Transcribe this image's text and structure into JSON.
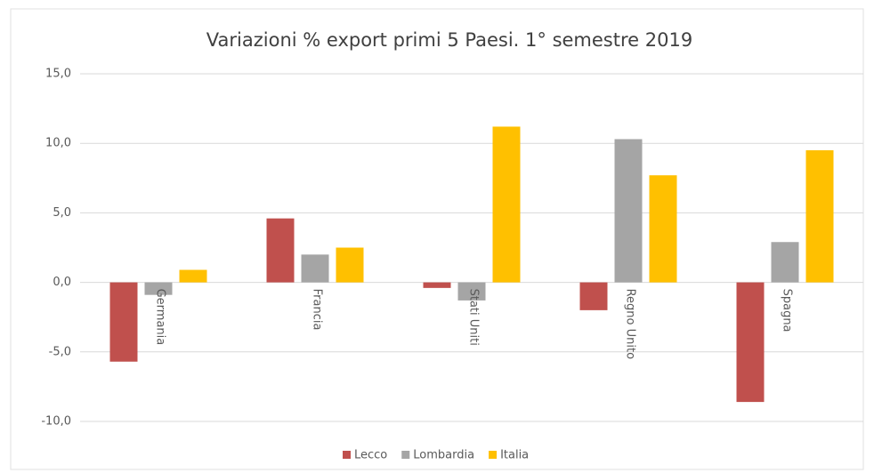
{
  "chart_data": {
    "type": "bar",
    "title": "Variazioni % export primi 5 Paesi. 1° semestre 2019",
    "categories": [
      "Germania",
      "Francia",
      "Stati Uniti",
      "Regno Unito",
      "Spagna"
    ],
    "series": [
      {
        "name": "Lecco",
        "color": "#c0504d",
        "values": [
          -5.7,
          4.6,
          -0.4,
          -2.0,
          -8.6
        ]
      },
      {
        "name": "Lombardia",
        "color": "#a5a5a5",
        "values": [
          -0.9,
          2.0,
          -1.3,
          10.3,
          2.9
        ]
      },
      {
        "name": "Italia",
        "color": "#ffc000",
        "values": [
          0.9,
          2.5,
          11.2,
          7.7,
          9.5
        ]
      }
    ],
    "ylim": [
      -10,
      15
    ],
    "yticks": [
      {
        "value": -10,
        "label": "-10,0"
      },
      {
        "value": -5,
        "label": "-5,0"
      },
      {
        "value": 0,
        "label": "0,0"
      },
      {
        "value": 5,
        "label": "5,0"
      },
      {
        "value": 10,
        "label": "10,0"
      },
      {
        "value": 15,
        "label": "15,0"
      }
    ],
    "grid": true,
    "legend": "bottom"
  }
}
